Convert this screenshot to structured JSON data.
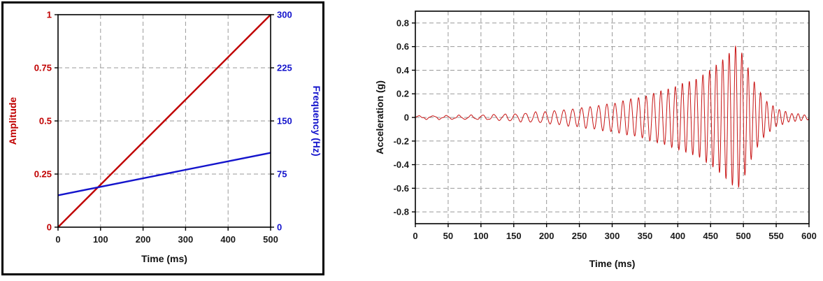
{
  "chart_data": [
    {
      "type": "line",
      "title": "",
      "xlabel": "Time (ms)",
      "xlim": [
        0,
        500
      ],
      "xticks": [
        0,
        100,
        200,
        300,
        400,
        500
      ],
      "grid": true,
      "grid_style": "dashed",
      "grid_color": "#999999",
      "frame_color": "#000000",
      "tick_label_color": "#1a1a1a",
      "axes": {
        "left": {
          "label": "Amplitude",
          "color": "#c00000",
          "lim": [
            0,
            1
          ],
          "ticks": [
            0,
            0.25,
            0.5,
            0.75,
            1
          ]
        },
        "right": {
          "label": "Frequency (Hz)",
          "color": "#1414cc",
          "lim": [
            0,
            300
          ],
          "ticks": [
            0,
            75,
            150,
            225,
            300
          ]
        }
      },
      "series": [
        {
          "name": "amplitude-ramp",
          "yaxis": "left",
          "color": "#c00000",
          "points": [
            [
              0,
              0
            ],
            [
              500,
              1
            ]
          ]
        },
        {
          "name": "frequency-sweep",
          "yaxis": "right",
          "color": "#1414cc",
          "points": [
            [
              0,
              45
            ],
            [
              500,
              105
            ]
          ]
        }
      ]
    },
    {
      "type": "line",
      "title": "",
      "xlabel": "Time (ms)",
      "ylabel": "Acceleration (g)",
      "xlim": [
        0,
        600
      ],
      "ylim": [
        -0.9,
        0.9
      ],
      "xticks": [
        0,
        50,
        100,
        150,
        200,
        250,
        300,
        350,
        400,
        450,
        500,
        550,
        600
      ],
      "yticks": [
        -0.8,
        -0.6,
        -0.4,
        -0.2,
        0,
        0.2,
        0.4,
        0.6,
        0.8
      ],
      "grid": true,
      "grid_style": "dashed",
      "grid_color": "#999999",
      "frame_color": "#000000",
      "tick_label_color": "#1a1a1a",
      "signal": {
        "kind": "swept-sine-chirp",
        "color": "#c81414",
        "freq_start_hz": 45,
        "freq_end_hz": 105,
        "sweep_ms": 500,
        "peak_acceleration_g": 0.62,
        "peak_time_ms": 490,
        "envelope_points": [
          [
            0,
            0.012
          ],
          [
            100,
            0.018
          ],
          [
            150,
            0.03
          ],
          [
            200,
            0.05
          ],
          [
            250,
            0.08
          ],
          [
            300,
            0.12
          ],
          [
            350,
            0.18
          ],
          [
            400,
            0.27
          ],
          [
            430,
            0.33
          ],
          [
            460,
            0.45
          ],
          [
            480,
            0.55
          ],
          [
            490,
            0.62
          ],
          [
            500,
            0.52
          ],
          [
            510,
            0.38
          ],
          [
            520,
            0.26
          ],
          [
            535,
            0.14
          ],
          [
            550,
            0.08
          ],
          [
            570,
            0.04
          ],
          [
            600,
            0.02
          ]
        ]
      }
    }
  ]
}
